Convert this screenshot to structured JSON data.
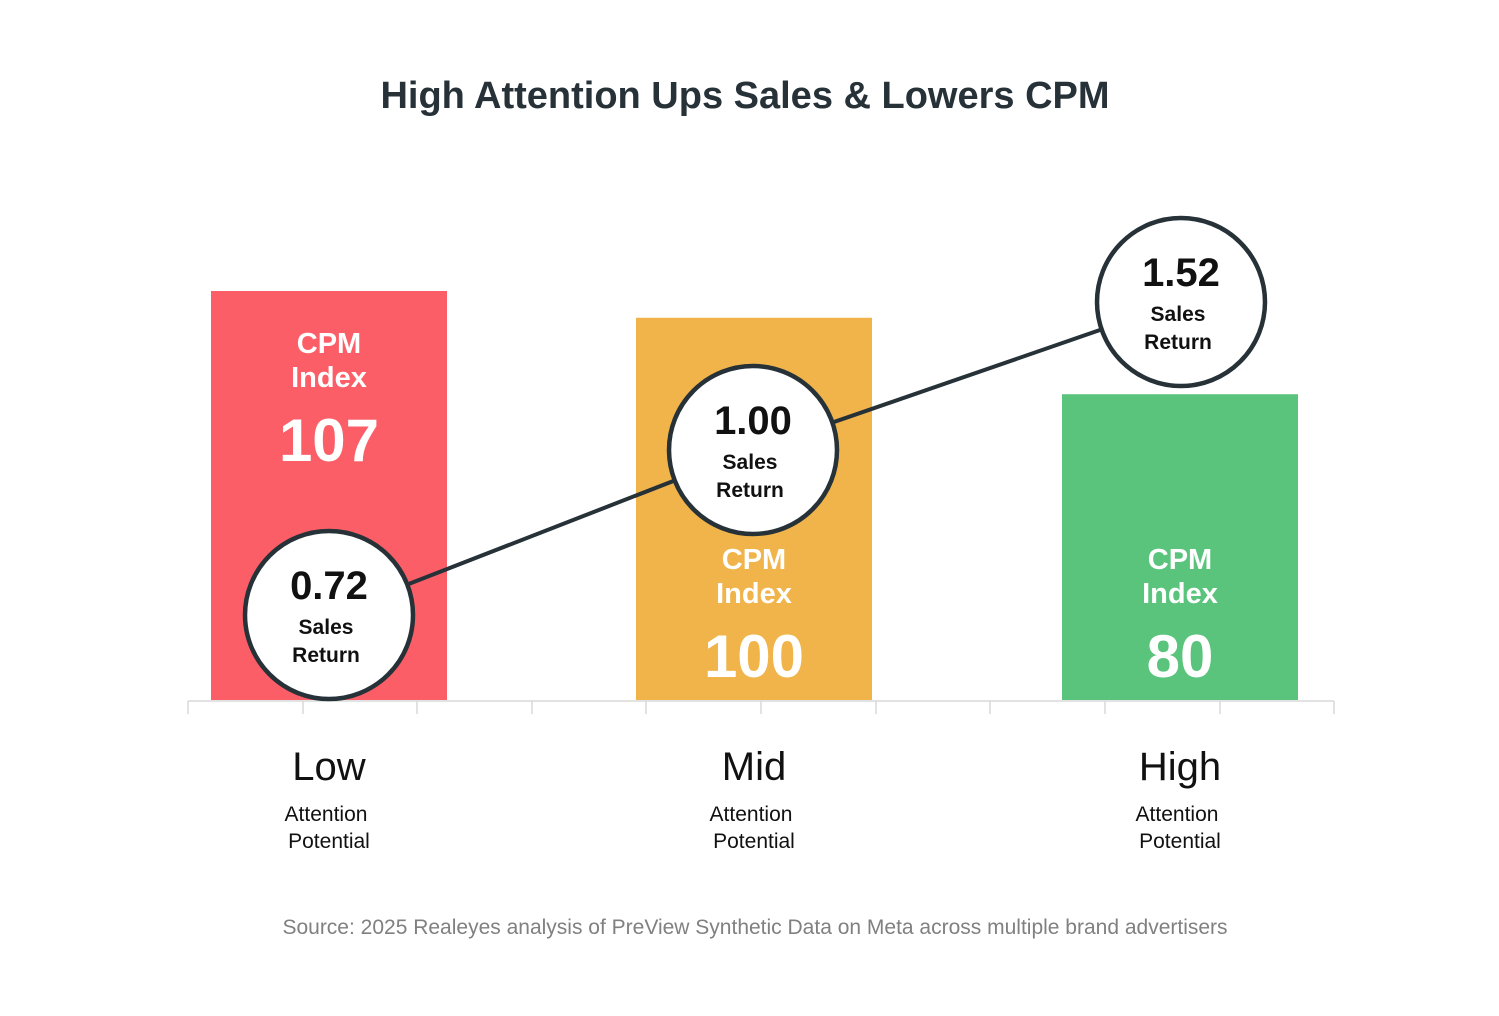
{
  "chart_data": {
    "type": "bar",
    "title": "High Attention Ups Sales & Lowers CPM",
    "categories": [
      "Low",
      "Mid",
      "High"
    ],
    "category_subtitle": [
      "Attention",
      "Potential"
    ],
    "series": [
      {
        "name": "CPM Index",
        "label_lines": [
          "CPM",
          "Index"
        ],
        "values": [
          107,
          100,
          80
        ],
        "colors": [
          "#fc5e68",
          "#f0b44b",
          "#5ac47d"
        ]
      },
      {
        "name": "Sales Return",
        "type": "line",
        "label_lines": [
          "Sales",
          "Return"
        ],
        "values": [
          "0.72",
          "1.00",
          "1.52"
        ]
      }
    ],
    "ylim": [
      0,
      107
    ],
    "grid": false,
    "source": "Source: 2025 Realeyes analysis of PreView Synthetic Data on Meta across multiple brand advertisers"
  }
}
